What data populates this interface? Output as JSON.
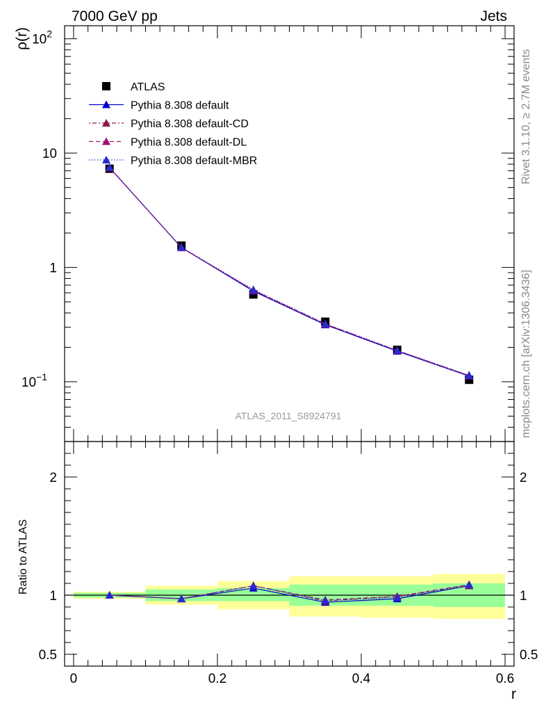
{
  "header": {
    "left": "7000 GeV pp",
    "right": "Jets"
  },
  "side_labels": {
    "rivet": "Rivet 3.1.10, ≥ 2.7M events",
    "mcplots": "mcplots.cern.ch [arXiv:1306.3436]"
  },
  "watermark": "ATLAS_2011_S8924791",
  "chart_data": [
    {
      "type": "line",
      "panel": "main",
      "ylabel": "ρ(r)",
      "yscale": "log",
      "ylim": [
        0.03,
        130
      ],
      "xlim": [
        -0.0125,
        0.6125
      ],
      "y_ticks": [
        {
          "value": 0.1,
          "base": "10",
          "exp": "−1"
        },
        {
          "value": 1,
          "base": "1",
          "exp": ""
        },
        {
          "value": 10,
          "base": "10",
          "exp": ""
        },
        {
          "value": 100,
          "base": "10",
          "exp": "2"
        }
      ],
      "legend_position": "top-left",
      "x": [
        0.05,
        0.15,
        0.25,
        0.35,
        0.45,
        0.55
      ],
      "series": [
        {
          "name": "ATLAS",
          "values": [
            7.3,
            1.55,
            0.58,
            0.335,
            0.19,
            0.104
          ],
          "color": "#000000",
          "marker": "square"
        },
        {
          "name": "Pythia 8.308 default",
          "values": [
            7.45,
            1.49,
            0.62,
            0.315,
            0.185,
            0.112
          ],
          "color": "#0000cc",
          "dash": "",
          "marker": "triangle"
        },
        {
          "name": "Pythia 8.308 default-CD",
          "values": [
            7.45,
            1.49,
            0.63,
            0.318,
            0.187,
            0.113
          ],
          "color": "#8b1a4a",
          "dash": "2 3 6 3",
          "marker": "triangle"
        },
        {
          "name": "Pythia 8.308 default-DL",
          "values": [
            7.45,
            1.49,
            0.63,
            0.32,
            0.187,
            0.113
          ],
          "color": "#a0106e",
          "dash": "6 4",
          "marker": "triangle"
        },
        {
          "name": "Pythia 8.308 default-MBR",
          "values": [
            7.5,
            1.5,
            0.64,
            0.322,
            0.188,
            0.114
          ],
          "color": "#2a2ad0",
          "dash": "1.5 2.5",
          "marker": "triangle"
        }
      ]
    },
    {
      "type": "line",
      "panel": "ratio",
      "ylabel": "Ratio to ATLAS",
      "xlabel": "r",
      "ylim": [
        0.4,
        2.3
      ],
      "xlim": [
        -0.0125,
        0.6125
      ],
      "x_ticks": [
        "0",
        "0.2",
        "0.4",
        "0.6"
      ],
      "y_ticks": [
        "0.5",
        "1",
        "2"
      ],
      "bins": [
        [
          0.0,
          0.1
        ],
        [
          0.1,
          0.2
        ],
        [
          0.2,
          0.3
        ],
        [
          0.3,
          0.4
        ],
        [
          0.4,
          0.5
        ],
        [
          0.5,
          0.6
        ]
      ],
      "band_stat": [
        [
          0.98,
          1.02
        ],
        [
          0.95,
          1.05
        ],
        [
          0.95,
          1.06
        ],
        [
          0.91,
          1.09
        ],
        [
          0.91,
          1.09
        ],
        [
          0.9,
          1.1
        ]
      ],
      "band_total": [
        [
          0.97,
          1.03
        ],
        [
          0.92,
          1.08
        ],
        [
          0.88,
          1.12
        ],
        [
          0.82,
          1.16
        ],
        [
          0.81,
          1.16
        ],
        [
          0.8,
          1.18
        ]
      ],
      "x": [
        0.05,
        0.15,
        0.25,
        0.35,
        0.45,
        0.55
      ],
      "series": [
        {
          "name": "Pythia 8.308 default",
          "values": [
            1.0,
            0.97,
            1.06,
            0.94,
            0.97,
            1.08
          ],
          "color": "#0000cc",
          "dash": ""
        },
        {
          "name": "Pythia 8.308 default-CD",
          "values": [
            1.0,
            0.97,
            1.08,
            0.95,
            0.99,
            1.08
          ],
          "color": "#8b1a4a",
          "dash": "2 3 6 3"
        },
        {
          "name": "Pythia 8.308 default-DL",
          "values": [
            1.0,
            0.97,
            1.08,
            0.96,
            0.99,
            1.09
          ],
          "color": "#a0106e",
          "dash": "6 4"
        },
        {
          "name": "Pythia 8.308 default-MBR",
          "values": [
            1.0,
            0.97,
            1.08,
            0.955,
            0.98,
            1.09
          ],
          "color": "#2a2ad0",
          "dash": "1.5 2.5"
        }
      ]
    }
  ]
}
